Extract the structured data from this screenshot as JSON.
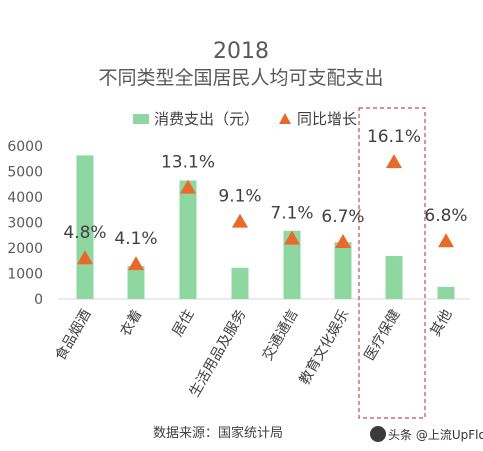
{
  "chart_data": {
    "type": "bar",
    "title": "2018",
    "subtitle": "不同类型全国居民人均可支配支出",
    "categories": [
      "食品烟酒",
      "衣着",
      "居住",
      "生活用品及服务",
      "交通通信",
      "教育文化娱乐",
      "医疗保健",
      "其他"
    ],
    "series": [
      {
        "name": "消费支出（元）",
        "type": "bar",
        "color": "#8fd7a0",
        "values": [
          5631,
          1289,
          4647,
          1223,
          2675,
          2226,
          1685,
          477
        ]
      },
      {
        "name": "同比增长",
        "type": "marker",
        "color": "#e8692c",
        "values": [
          4.8,
          4.1,
          13.1,
          9.1,
          7.1,
          6.7,
          16.1,
          6.8
        ],
        "labels": [
          "4.8%",
          "4.1%",
          "13.1%",
          "9.1%",
          "7.1%",
          "6.7%",
          "16.1%",
          "6.8%"
        ]
      }
    ],
    "yticks": [
      0,
      1000,
      2000,
      3000,
      4000,
      5000,
      6000
    ],
    "ylim": [
      0,
      6000
    ],
    "highlight_category": "医疗保健",
    "legend_position": "top"
  },
  "source_note": "数据来源：国家统计局",
  "watermark": "头条 @上流UpFlow"
}
